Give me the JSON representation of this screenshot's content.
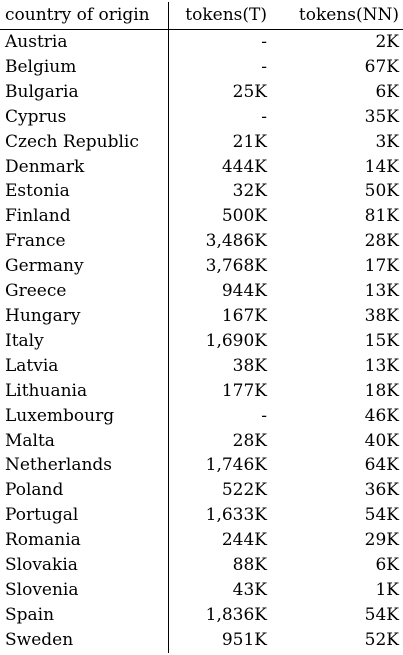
{
  "table": {
    "headers": [
      "country of origin",
      "tokens(T)",
      "tokens(NN)"
    ],
    "rows": [
      [
        "Austria",
        "-",
        "2K"
      ],
      [
        "Belgium",
        "-",
        "67K"
      ],
      [
        "Bulgaria",
        "25K",
        "6K"
      ],
      [
        "Cyprus",
        "-",
        "35K"
      ],
      [
        "Czech Republic",
        "21K",
        "3K"
      ],
      [
        "Denmark",
        "444K",
        "14K"
      ],
      [
        "Estonia",
        "32K",
        "50K"
      ],
      [
        "Finland",
        "500K",
        "81K"
      ],
      [
        "France",
        "3,486K",
        "28K"
      ],
      [
        "Germany",
        "3,768K",
        "17K"
      ],
      [
        "Greece",
        "944K",
        "13K"
      ],
      [
        "Hungary",
        "167K",
        "38K"
      ],
      [
        "Italy",
        "1,690K",
        "15K"
      ],
      [
        "Latvia",
        "38K",
        "13K"
      ],
      [
        "Lithuania",
        "177K",
        "18K"
      ],
      [
        "Luxembourg",
        "-",
        "46K"
      ],
      [
        "Malta",
        "28K",
        "40K"
      ],
      [
        "Netherlands",
        "1,746K",
        "64K"
      ],
      [
        "Poland",
        "522K",
        "36K"
      ],
      [
        "Portugal",
        "1,633K",
        "54K"
      ],
      [
        "Romania",
        "244K",
        "29K"
      ],
      [
        "Slovakia",
        "88K",
        "6K"
      ],
      [
        "Slovenia",
        "43K",
        "1K"
      ],
      [
        "Spain",
        "1,836K",
        "54K"
      ],
      [
        "Sweden",
        "951K",
        "52K"
      ]
    ]
  }
}
